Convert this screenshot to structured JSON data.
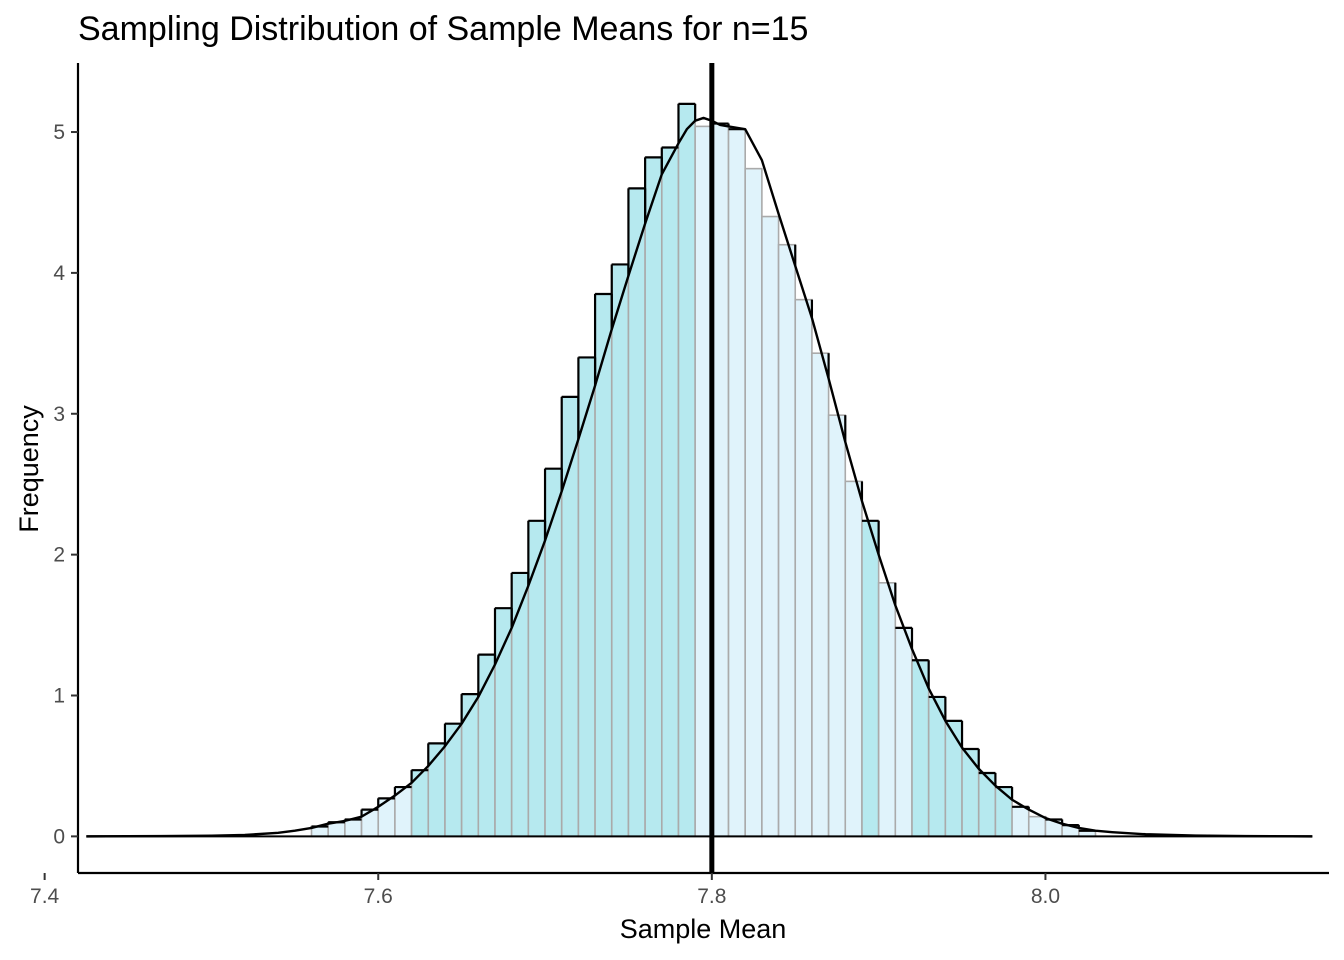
{
  "chart_data": {
    "type": "bar",
    "title": "Sampling Distribution of Sample Means for n=15",
    "xlabel": "Sample Mean",
    "ylabel": "Frequency",
    "xlim": [
      7.42,
      8.17
    ],
    "ylim": [
      -0.26,
      5.49
    ],
    "xticks": [
      7.4,
      7.6,
      7.8,
      8.0
    ],
    "xtick_labels": [
      "7.4",
      "7.6",
      "7.8",
      "8.0"
    ],
    "yticks": [
      0,
      1,
      2,
      3,
      4,
      5
    ],
    "ytick_labels": [
      "0",
      "1",
      "2",
      "3",
      "4",
      "5"
    ],
    "grid": false,
    "bin_width": 0.01,
    "bin_start": 7.56,
    "histogram_values": [
      0.07,
      0.1,
      0.12,
      0.19,
      0.27,
      0.35,
      0.47,
      0.66,
      0.8,
      1.01,
      1.29,
      1.62,
      1.87,
      2.24,
      2.61,
      3.12,
      3.4,
      3.85,
      4.06,
      4.6,
      4.82,
      4.89,
      5.2,
      5.04,
      5.06,
      5.02,
      4.74,
      4.4,
      4.2,
      3.81,
      3.43,
      2.99,
      2.52,
      2.24,
      1.8,
      1.48,
      1.25,
      0.99,
      0.82,
      0.62,
      0.45,
      0.35,
      0.21,
      0.14,
      0.12,
      0.08,
      0.04
    ],
    "density_curve": {
      "x": [
        7.425,
        7.47,
        7.5,
        7.52,
        7.54,
        7.55,
        7.56,
        7.57,
        7.58,
        7.59,
        7.6,
        7.61,
        7.62,
        7.63,
        7.64,
        7.65,
        7.66,
        7.67,
        7.68,
        7.69,
        7.7,
        7.71,
        7.72,
        7.73,
        7.74,
        7.75,
        7.76,
        7.77,
        7.78,
        7.785,
        7.79,
        7.795,
        7.8,
        7.805,
        7.81,
        7.82,
        7.83,
        7.84,
        7.85,
        7.86,
        7.87,
        7.88,
        7.89,
        7.9,
        7.91,
        7.92,
        7.93,
        7.94,
        7.95,
        7.96,
        7.97,
        7.98,
        7.99,
        8.0,
        8.01,
        8.02,
        8.03,
        8.04,
        8.06,
        8.09,
        8.12,
        8.16
      ],
      "y": [
        0.0,
        0.002,
        0.005,
        0.01,
        0.025,
        0.04,
        0.06,
        0.09,
        0.11,
        0.14,
        0.21,
        0.29,
        0.38,
        0.5,
        0.64,
        0.8,
        0.99,
        1.22,
        1.48,
        1.78,
        2.1,
        2.45,
        2.82,
        3.2,
        3.6,
        3.98,
        4.35,
        4.7,
        4.92,
        5.02,
        5.08,
        5.1,
        5.08,
        5.05,
        5.04,
        5.02,
        4.8,
        4.42,
        4.05,
        3.68,
        3.25,
        2.8,
        2.38,
        2.0,
        1.64,
        1.33,
        1.05,
        0.82,
        0.63,
        0.48,
        0.36,
        0.26,
        0.19,
        0.13,
        0.09,
        0.06,
        0.04,
        0.03,
        0.015,
        0.006,
        0.002,
        0.0
      ]
    },
    "vline": 7.8,
    "colors": {
      "bar_fill": "#e0f3fb",
      "bar_fill_exposed": "#b6e9ef",
      "bar_edge": "#aaaaaa",
      "outline": "#000000",
      "curve": "#000000",
      "vline": "#000000",
      "axis": "#000000"
    }
  }
}
